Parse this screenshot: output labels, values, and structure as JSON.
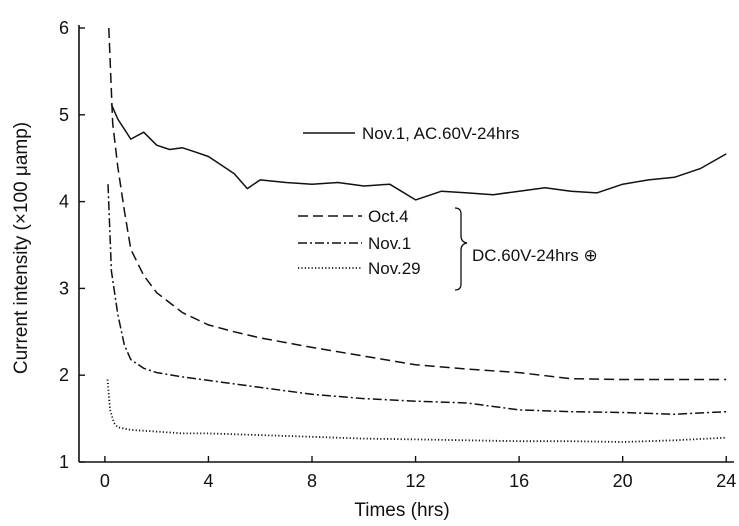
{
  "chart_data": {
    "type": "line",
    "xlabel": "Times (hrs)",
    "ylabel": "Current intensity (×100 μamp)",
    "xlim": [
      -1.0,
      24.3
    ],
    "ylim": [
      1.0,
      6.0
    ],
    "xticks": [
      0,
      4,
      8,
      12,
      16,
      20,
      24
    ],
    "yticks": [
      1,
      2,
      3,
      4,
      5,
      6
    ],
    "grid": false,
    "legend_position": "top-right",
    "group_label": "DC.60V-24hrs ⊕",
    "series": [
      {
        "name": "Nov.1, AC.60V-24hrs",
        "style": "solid",
        "x": [
          0.25,
          0.5,
          1.0,
          1.5,
          2.0,
          2.5,
          3.0,
          3.5,
          4.0,
          4.5,
          5.0,
          5.5,
          6.0,
          7.0,
          8.0,
          9.0,
          10.0,
          11.0,
          12.0,
          13.0,
          14.0,
          15.0,
          16.0,
          17.0,
          18.0,
          19.0,
          20.0,
          21.0,
          22.0,
          23.0,
          24.0
        ],
        "y": [
          5.12,
          4.95,
          4.72,
          4.8,
          4.65,
          4.6,
          4.62,
          4.57,
          4.52,
          4.42,
          4.32,
          4.15,
          4.25,
          4.22,
          4.2,
          4.22,
          4.18,
          4.2,
          4.02,
          4.12,
          4.1,
          4.08,
          4.12,
          4.16,
          4.12,
          4.1,
          4.2,
          4.25,
          4.28,
          4.38,
          4.55
        ]
      },
      {
        "name": "Oct.4",
        "style": "dashed",
        "x": [
          0.15,
          0.3,
          0.5,
          0.75,
          1.0,
          1.5,
          2.0,
          3.0,
          4.0,
          5.0,
          6.0,
          8.0,
          10.0,
          12.0,
          14.0,
          16.0,
          18.0,
          20.0,
          22.0,
          24.0
        ],
        "y": [
          6.0,
          4.9,
          4.4,
          3.9,
          3.45,
          3.15,
          2.95,
          2.72,
          2.58,
          2.5,
          2.43,
          2.32,
          2.22,
          2.12,
          2.07,
          2.03,
          1.96,
          1.95,
          1.95,
          1.95
        ]
      },
      {
        "name": "Nov.1",
        "style": "dash-dot",
        "x": [
          0.12,
          0.25,
          0.5,
          0.75,
          1.0,
          1.5,
          2.0,
          3.0,
          4.0,
          6.0,
          8.0,
          10.0,
          12.0,
          14.0,
          16.0,
          18.0,
          20.0,
          22.0,
          24.0
        ],
        "y": [
          4.2,
          3.2,
          2.7,
          2.35,
          2.18,
          2.08,
          2.03,
          1.98,
          1.94,
          1.86,
          1.78,
          1.73,
          1.7,
          1.68,
          1.6,
          1.58,
          1.57,
          1.55,
          1.58
        ]
      },
      {
        "name": "Nov.29",
        "style": "dotted",
        "x": [
          0.1,
          0.2,
          0.35,
          0.5,
          1.0,
          2.0,
          3.0,
          4.0,
          6.0,
          8.0,
          10.0,
          12.0,
          14.0,
          16.0,
          18.0,
          20.0,
          22.0,
          24.0
        ],
        "y": [
          1.95,
          1.6,
          1.45,
          1.4,
          1.37,
          1.35,
          1.33,
          1.33,
          1.31,
          1.29,
          1.27,
          1.26,
          1.25,
          1.24,
          1.24,
          1.23,
          1.25,
          1.28
        ]
      }
    ]
  }
}
